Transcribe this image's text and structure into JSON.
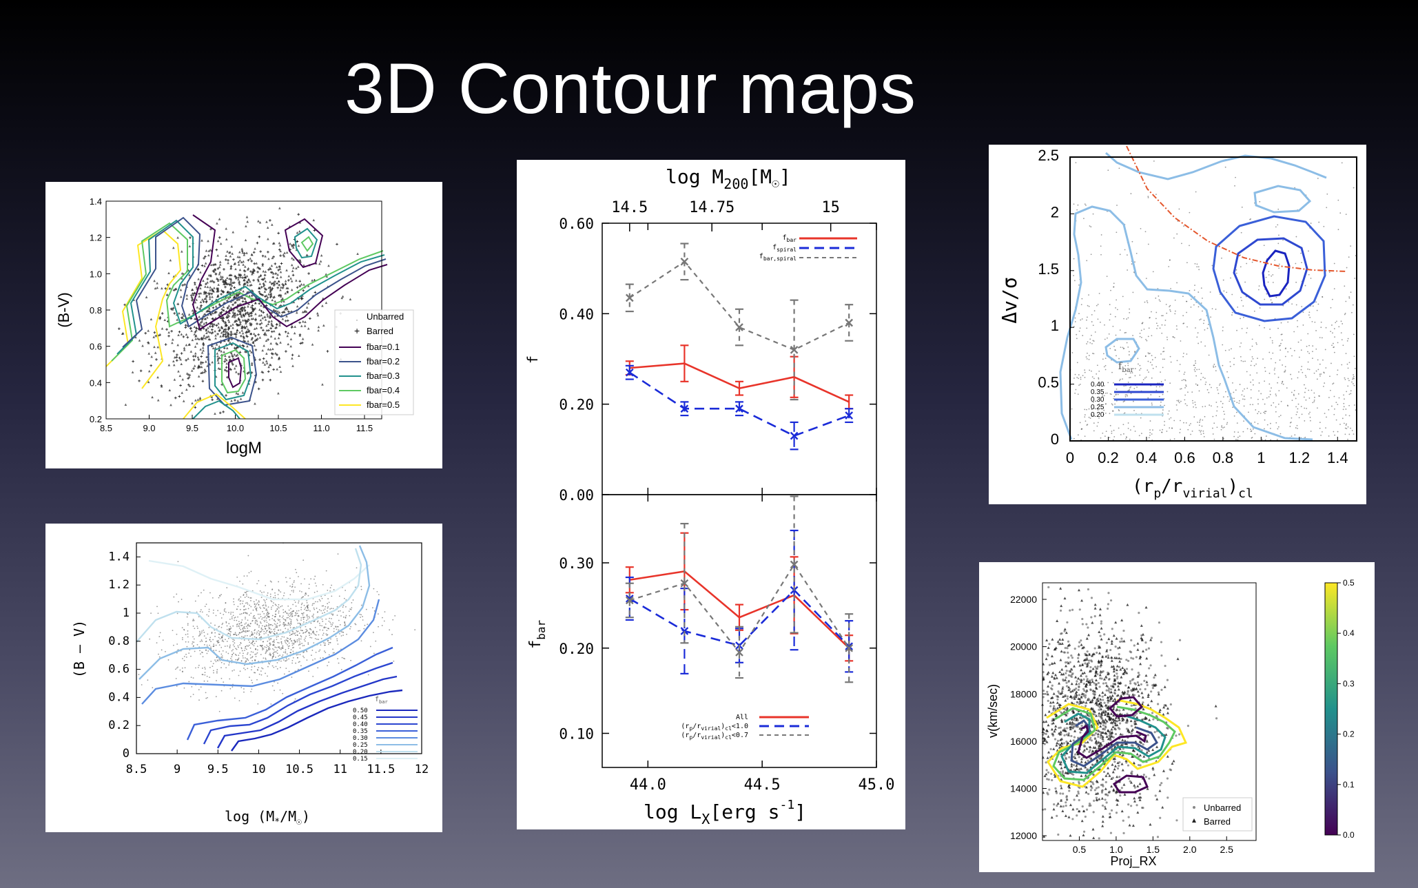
{
  "slide": {
    "title": "3D Contour maps"
  },
  "colors": {
    "red": "#e8342a",
    "blue": "#1a2bd8",
    "gray": "#777777",
    "viridis": [
      "#440154",
      "#3b528b",
      "#21918c",
      "#5ec962",
      "#fde725"
    ],
    "blues": [
      "#1f2ec8",
      "#3a5fd8",
      "#5b8ce0",
      "#8cbde6",
      "#bfe0ee",
      "#dff1f6"
    ]
  },
  "chart_data": [
    {
      "id": "chart_a",
      "type": "scatter",
      "xlabel": "logM",
      "ylabel": "(B-V)",
      "xlim": [
        8.5,
        11.7
      ],
      "ylim": [
        0.2,
        1.4
      ],
      "xticks": [
        "8.5",
        "9.0",
        "9.5",
        "10.0",
        "10.5",
        "11.0",
        "11.5"
      ],
      "yticks": [
        "0.2",
        "0.4",
        "0.6",
        "0.8",
        "1.0",
        "1.2",
        "1.4"
      ],
      "legend": [
        "Unbarred",
        "Barred",
        "fbar=0.1",
        "fbar=0.2",
        "fbar=0.3",
        "fbar=0.4",
        "fbar=0.5"
      ],
      "legend_position": "lower-right"
    },
    {
      "id": "chart_b",
      "type": "line",
      "xlabel": "log L",
      "xlabel_sub": "X",
      "xlabel_unit": "[erg s",
      "xlabel_sup": "-1",
      "xlabel_end": "]",
      "x2label": "log M",
      "x2label_sub": "200",
      "x2label_unit": "[M",
      "x2label_sun": "☉",
      "x2label_end": "]",
      "xlim": [
        43.8,
        45.0
      ],
      "xticks": [
        "44.0",
        "44.5",
        "45.0"
      ],
      "x2ticks": [
        "14.5",
        "14.75",
        "15"
      ],
      "x2tick_pos": [
        43.92,
        44.28,
        44.8
      ],
      "top_panel": {
        "ylabel": "f",
        "ylim": [
          0.0,
          0.6
        ],
        "yticks": [
          "0.00",
          "0.20",
          "0.40",
          "0.60"
        ],
        "legend": [
          "f_bar",
          "f_spiral",
          "f_bar,spiral"
        ],
        "legend_position": "top-right",
        "series": [
          {
            "name": "f_bar",
            "style": "solid",
            "color": "red",
            "x": [
              43.92,
              44.16,
              44.4,
              44.64,
              44.88
            ],
            "y": [
              0.28,
              0.29,
              0.235,
              0.26,
              0.205
            ],
            "err": [
              0.015,
              0.04,
              0.015,
              0.045,
              0.015
            ]
          },
          {
            "name": "f_spiral",
            "style": "dashed",
            "color": "blue",
            "x": [
              43.92,
              44.16,
              44.4,
              44.64,
              44.88
            ],
            "y": [
              0.27,
              0.19,
              0.19,
              0.13,
              0.175
            ],
            "err": [
              0.015,
              0.015,
              0.015,
              0.03,
              0.015
            ]
          },
          {
            "name": "f_bar,spiral",
            "style": "dashed",
            "color": "gray",
            "x": [
              43.92,
              44.16,
              44.4,
              44.64,
              44.88
            ],
            "y": [
              0.435,
              0.515,
              0.37,
              0.32,
              0.38
            ],
            "err": [
              0.03,
              0.04,
              0.04,
              0.11,
              0.04
            ]
          }
        ]
      },
      "bottom_panel": {
        "ylabel": "f",
        "ylabel_sub": "bar",
        "ylim": [
          0.06,
          0.38
        ],
        "yticks": [
          "0.10",
          "0.20",
          "0.30"
        ],
        "legend": [
          "All",
          "(r_p/r_virial)_cl<1.0",
          "(r_p/r_virial)_cl<0.7"
        ],
        "legend_position": "bottom-right",
        "series": [
          {
            "name": "All",
            "style": "solid",
            "color": "red",
            "x": [
              43.92,
              44.16,
              44.4,
              44.64,
              44.88
            ],
            "y": [
              0.28,
              0.29,
              0.236,
              0.262,
              0.2
            ],
            "err": [
              0.015,
              0.045,
              0.015,
              0.045,
              0.015
            ]
          },
          {
            "name": "(r_p/r_virial)_cl<1.0",
            "style": "dashed",
            "color": "blue",
            "x": [
              43.92,
              44.16,
              44.4,
              44.64,
              44.88
            ],
            "y": [
              0.258,
              0.22,
              0.203,
              0.268,
              0.202
            ],
            "err": [
              0.025,
              0.05,
              0.02,
              0.07,
              0.03
            ]
          },
          {
            "name": "(r_p/r_virial)_cl<0.7",
            "style": "dashed",
            "color": "gray",
            "x": [
              43.92,
              44.16,
              44.4,
              44.64,
              44.88
            ],
            "y": [
              0.256,
              0.276,
              0.195,
              0.298,
              0.2
            ],
            "err": [
              0.02,
              0.07,
              0.03,
              0.08,
              0.04
            ]
          }
        ]
      }
    },
    {
      "id": "chart_c",
      "type": "scatter",
      "xlabel": "(r",
      "xlabel_sub1": "p",
      "xlabel_mid": "/r",
      "xlabel_sub2": "virial",
      "xlabel_end": ")",
      "xlabel_sub3": "cl",
      "ylabel": "Δv/σ",
      "xlim": [
        0,
        1.5
      ],
      "ylim": [
        0,
        2.5
      ],
      "xticks": [
        "0",
        "0.2",
        "0.4",
        "0.6",
        "0.8",
        "1",
        "1.2",
        "1.4"
      ],
      "yticks": [
        "0",
        "0.5",
        "1",
        "1.5",
        "2",
        "2.5"
      ],
      "legend_title": "f",
      "legend_title_sub": "bar",
      "legend": [
        "0.40",
        "0.35",
        "0.30",
        "0.25",
        "0.20"
      ],
      "legend_position": "lower-left"
    },
    {
      "id": "chart_d",
      "type": "scatter",
      "xlabel": "log  (M",
      "xlabel_sub": "*",
      "xlabel_mid": "/M",
      "xlabel_sun": "☉",
      "xlabel_end": ")",
      "ylabel": "(B  –  V)",
      "xlim": [
        8.5,
        12
      ],
      "ylim": [
        0,
        1.5
      ],
      "xticks": [
        "8.5",
        "9",
        "9.5",
        "10",
        "10.5",
        "11",
        "11.5",
        "12"
      ],
      "yticks": [
        "0",
        "0.2",
        "0.4",
        "0.6",
        "0.8",
        "1",
        "1.2",
        "1.4"
      ],
      "legend_title": "f",
      "legend_title_sub": "bar",
      "legend": [
        "0.50",
        "0.45",
        "0.40",
        "0.35",
        "0.30",
        "0.25",
        "0.20",
        "0.15"
      ],
      "legend_position": "lower-right"
    },
    {
      "id": "chart_e",
      "type": "scatter",
      "xlabel": "Proj_RX",
      "ylabel": "v(km/sec)",
      "xlim": [
        0,
        2.9
      ],
      "ylim": [
        11800,
        22700
      ],
      "xticks": [
        "0.5",
        "1.0",
        "1.5",
        "2.0",
        "2.5"
      ],
      "yticks": [
        "12000",
        "14000",
        "16000",
        "18000",
        "20000",
        "22000"
      ],
      "colorbar": {
        "ticks": [
          "0.0",
          "0.1",
          "0.2",
          "0.3",
          "0.4",
          "0.5"
        ],
        "range": [
          0,
          0.5
        ]
      },
      "legend": [
        "Unbarred",
        "Barred"
      ],
      "legend_position": "lower-right"
    }
  ]
}
